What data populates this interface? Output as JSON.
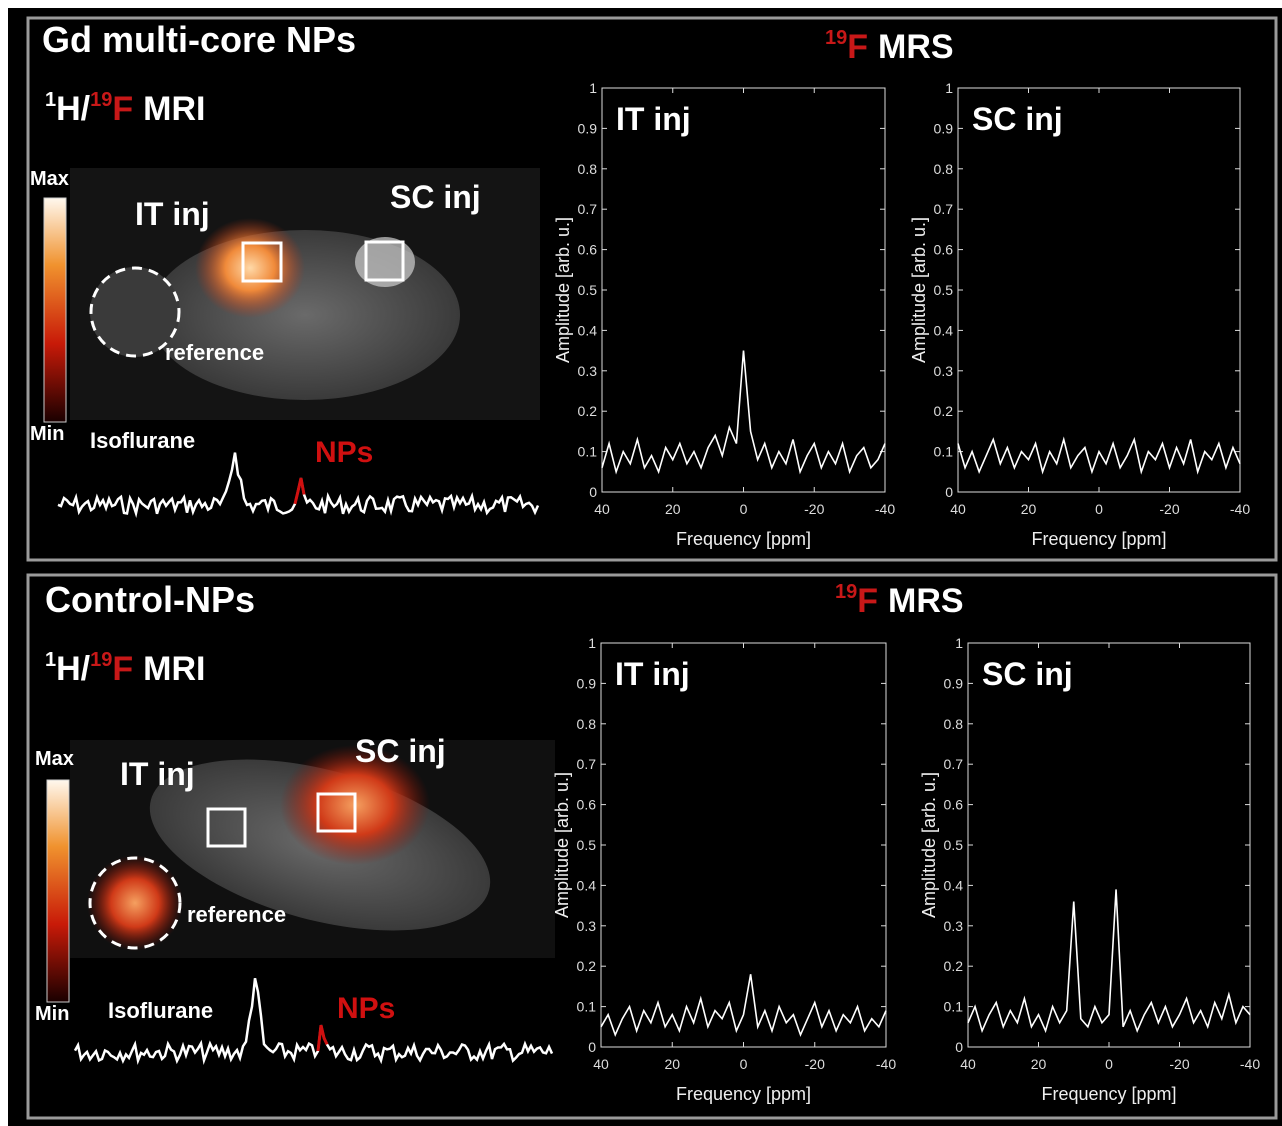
{
  "panels": [
    {
      "title": "Gd multi-core NPs",
      "mrs_label": [
        "19",
        "F",
        "MRS"
      ],
      "mri_label": [
        "1",
        "H/",
        "19",
        "F",
        "MRI"
      ],
      "colorbar": [
        "Max",
        "Min"
      ],
      "annotations": {
        "it": "IT inj",
        "sc": "SC inj",
        "reference": "reference",
        "isoflurane": "Isoflurane",
        "nps": "NPs"
      }
    },
    {
      "title": "Control-NPs",
      "mrs_label": [
        "19",
        "F",
        "MRS"
      ],
      "mri_label": [
        "1",
        "H/",
        "19",
        "F",
        "MRI"
      ],
      "colorbar": [
        "Max",
        "Min"
      ],
      "annotations": {
        "it": "IT inj",
        "sc": "SC inj",
        "reference": "reference",
        "isoflurane": "Isoflurane",
        "nps": "NPs"
      }
    }
  ],
  "chart_data": [
    {
      "type": "line",
      "title": "IT inj",
      "xlabel": "Frequency [ppm]",
      "ylabel": "Amplitude [arb. u.]",
      "xlim": [
        40,
        -40
      ],
      "ylim": [
        0,
        1
      ],
      "xticks": [
        40,
        20,
        0,
        -20,
        -40
      ],
      "yticks": [
        0,
        0.1,
        0.2,
        0.3,
        0.4,
        0.5,
        0.6,
        0.7,
        0.8,
        0.9,
        1
      ],
      "x": [
        40,
        38,
        36,
        34,
        32,
        30,
        28,
        26,
        24,
        22,
        20,
        18,
        16,
        14,
        12,
        10,
        8,
        6,
        4,
        2,
        0,
        -2,
        -4,
        -6,
        -8,
        -10,
        -12,
        -14,
        -16,
        -18,
        -20,
        -22,
        -24,
        -26,
        -28,
        -30,
        -32,
        -34,
        -36,
        -38,
        -40
      ],
      "series": [
        {
          "color": "#ffffff",
          "values": [
            0.06,
            0.12,
            0.05,
            0.1,
            0.07,
            0.13,
            0.06,
            0.09,
            0.05,
            0.11,
            0.08,
            0.12,
            0.07,
            0.1,
            0.06,
            0.11,
            0.14,
            0.09,
            0.16,
            0.12,
            0.35,
            0.15,
            0.08,
            0.12,
            0.06,
            0.1,
            0.07,
            0.13,
            0.05,
            0.09,
            0.12,
            0.06,
            0.1,
            0.07,
            0.12,
            0.05,
            0.09,
            0.11,
            0.06,
            0.08,
            0.12
          ]
        }
      ]
    },
    {
      "type": "line",
      "title": "SC inj",
      "xlabel": "Frequency [ppm]",
      "ylabel": "Amplitude [arb. u.]",
      "xlim": [
        40,
        -40
      ],
      "ylim": [
        0,
        1
      ],
      "xticks": [
        40,
        20,
        0,
        -20,
        -40
      ],
      "yticks": [
        0,
        0.1,
        0.2,
        0.3,
        0.4,
        0.5,
        0.6,
        0.7,
        0.8,
        0.9,
        1
      ],
      "x": [
        40,
        38,
        36,
        34,
        32,
        30,
        28,
        26,
        24,
        22,
        20,
        18,
        16,
        14,
        12,
        10,
        8,
        6,
        4,
        2,
        0,
        -2,
        -4,
        -6,
        -8,
        -10,
        -12,
        -14,
        -16,
        -18,
        -20,
        -22,
        -24,
        -26,
        -28,
        -30,
        -32,
        -34,
        -36,
        -38,
        -40
      ],
      "series": [
        {
          "color": "#ffffff",
          "values": [
            0.12,
            0.06,
            0.1,
            0.05,
            0.09,
            0.13,
            0.07,
            0.11,
            0.06,
            0.1,
            0.08,
            0.12,
            0.05,
            0.1,
            0.07,
            0.13,
            0.06,
            0.09,
            0.11,
            0.05,
            0.1,
            0.07,
            0.12,
            0.06,
            0.09,
            0.13,
            0.05,
            0.1,
            0.08,
            0.12,
            0.06,
            0.11,
            0.07,
            0.13,
            0.05,
            0.1,
            0.08,
            0.12,
            0.06,
            0.11,
            0.07
          ]
        }
      ]
    },
    {
      "type": "line",
      "title": "IT inj",
      "xlabel": "Frequency [ppm]",
      "ylabel": "Amplitude [arb. u.]",
      "xlim": [
        40,
        -40
      ],
      "ylim": [
        0,
        1
      ],
      "xticks": [
        40,
        20,
        0,
        -20,
        -40
      ],
      "yticks": [
        0,
        0.1,
        0.2,
        0.3,
        0.4,
        0.5,
        0.6,
        0.7,
        0.8,
        0.9,
        1
      ],
      "x": [
        40,
        38,
        36,
        34,
        32,
        30,
        28,
        26,
        24,
        22,
        20,
        18,
        16,
        14,
        12,
        10,
        8,
        6,
        4,
        2,
        0,
        -2,
        -4,
        -6,
        -8,
        -10,
        -12,
        -14,
        -16,
        -18,
        -20,
        -22,
        -24,
        -26,
        -28,
        -30,
        -32,
        -34,
        -36,
        -38,
        -40
      ],
      "series": [
        {
          "color": "#ffffff",
          "values": [
            0.05,
            0.08,
            0.03,
            0.07,
            0.1,
            0.04,
            0.09,
            0.06,
            0.11,
            0.05,
            0.08,
            0.04,
            0.1,
            0.06,
            0.12,
            0.05,
            0.09,
            0.07,
            0.11,
            0.04,
            0.08,
            0.18,
            0.05,
            0.09,
            0.04,
            0.1,
            0.06,
            0.08,
            0.03,
            0.07,
            0.11,
            0.05,
            0.09,
            0.04,
            0.08,
            0.06,
            0.1,
            0.04,
            0.07,
            0.05,
            0.09
          ]
        }
      ]
    },
    {
      "type": "line",
      "title": "SC inj",
      "xlabel": "Frequency [ppm]",
      "ylabel": "Amplitude [arb. u.]",
      "xlim": [
        40,
        -40
      ],
      "ylim": [
        0,
        1
      ],
      "xticks": [
        40,
        20,
        0,
        -20,
        -40
      ],
      "yticks": [
        0,
        0.1,
        0.2,
        0.3,
        0.4,
        0.5,
        0.6,
        0.7,
        0.8,
        0.9,
        1
      ],
      "x": [
        40,
        38,
        36,
        34,
        32,
        30,
        28,
        26,
        24,
        22,
        20,
        18,
        16,
        14,
        12,
        10,
        8,
        6,
        4,
        2,
        0,
        -2,
        -4,
        -6,
        -8,
        -10,
        -12,
        -14,
        -16,
        -18,
        -20,
        -22,
        -24,
        -26,
        -28,
        -30,
        -32,
        -34,
        -36,
        -38,
        -40
      ],
      "series": [
        {
          "color": "#ffffff",
          "values": [
            0.06,
            0.1,
            0.04,
            0.08,
            0.11,
            0.05,
            0.09,
            0.06,
            0.12,
            0.05,
            0.08,
            0.04,
            0.1,
            0.06,
            0.09,
            0.36,
            0.07,
            0.05,
            0.1,
            0.06,
            0.08,
            0.39,
            0.05,
            0.09,
            0.04,
            0.08,
            0.11,
            0.06,
            0.1,
            0.05,
            0.08,
            0.12,
            0.06,
            0.09,
            0.05,
            0.11,
            0.07,
            0.13,
            0.06,
            0.1,
            0.08
          ]
        }
      ]
    }
  ]
}
